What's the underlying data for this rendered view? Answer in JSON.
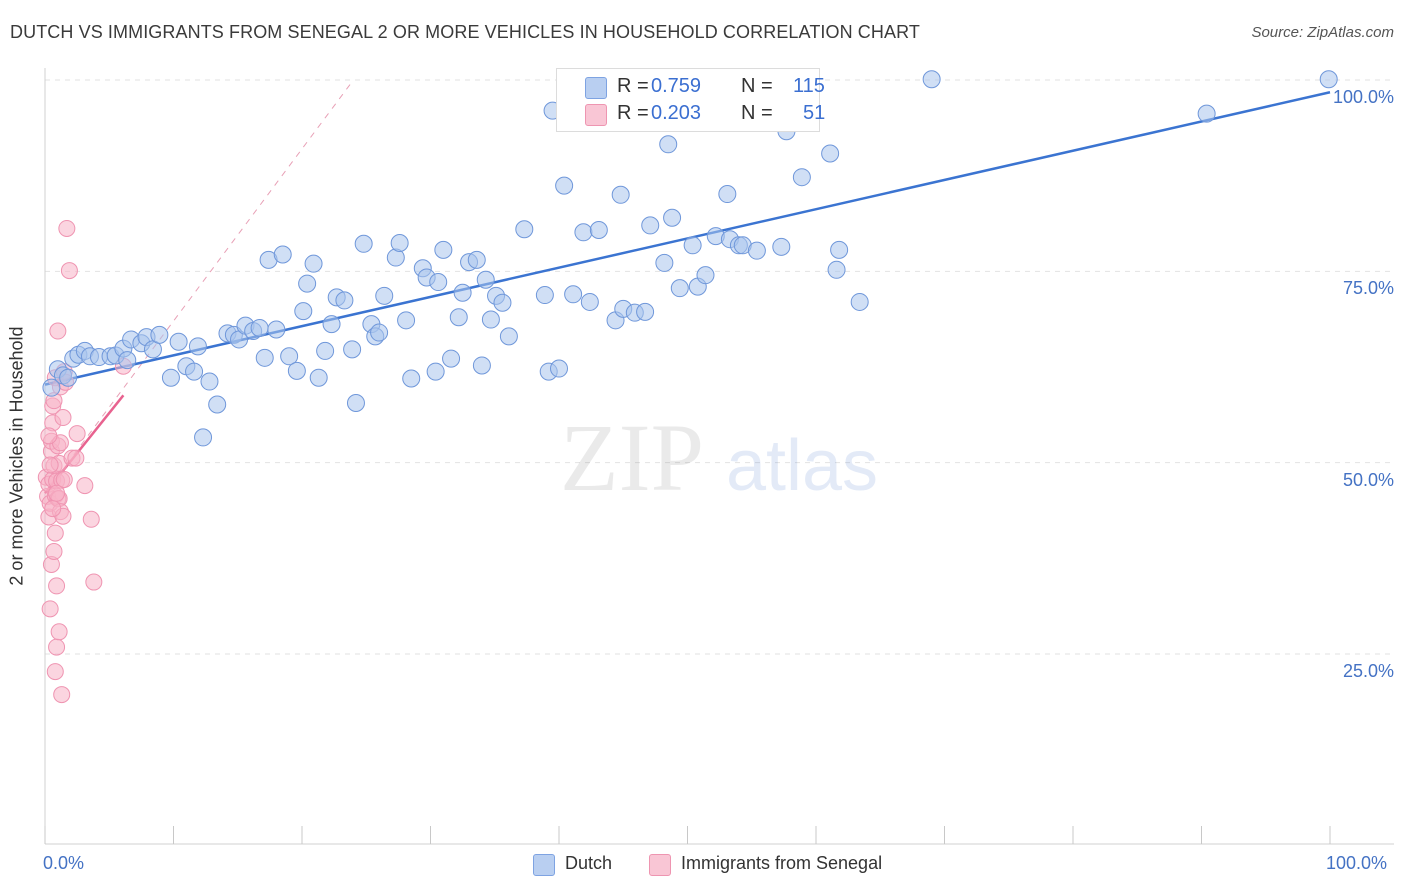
{
  "title": "DUTCH VS IMMIGRANTS FROM SENEGAL 2 OR MORE VEHICLES IN HOUSEHOLD CORRELATION CHART",
  "source": "Source: ZipAtlas.com",
  "colors": {
    "dutch": "#3b74d1",
    "dutch_fill": "#a9c4ec",
    "senegal": "#e8628f",
    "senegal_fill": "#f7b3c7",
    "tick_text": "#4472c4"
  },
  "legend": {
    "rows": [
      {
        "r_label": "R =",
        "r_value": "0.759",
        "n_label": "N =",
        "n_value": "115"
      },
      {
        "r_label": "R =",
        "r_value": "0.203",
        "n_label": "N =",
        "n_value": "51"
      }
    ]
  },
  "chart_data": {
    "type": "scatter",
    "title": "DUTCH VS IMMIGRANTS FROM SENEGAL 2 OR MORE VEHICLES IN HOUSEHOLD CORRELATION CHART",
    "xlabel": "",
    "ylabel": "2 or more Vehicles in Household",
    "xlim": [
      0,
      100
    ],
    "ylim": [
      0,
      102
    ],
    "x_tick_labels": [
      "0.0%",
      "100.0%"
    ],
    "y_tick_labels": [
      "25.0%",
      "50.0%",
      "75.0%",
      "100.0%"
    ],
    "y_ticks": [
      25,
      50,
      75,
      100
    ],
    "grid": true,
    "watermark": {
      "part1": "ZIP",
      "part2": "atlas"
    },
    "series": [
      {
        "name": "Dutch",
        "color": "#3b74d1",
        "trend": {
          "x0": 0,
          "y0": 60.2,
          "x1": 100,
          "y1": 98.4
        },
        "points": [
          [
            0.5,
            59.8
          ],
          [
            1,
            62.2
          ],
          [
            1.4,
            61.4
          ],
          [
            1.8,
            61.1
          ],
          [
            2.2,
            63.6
          ],
          [
            2.6,
            64.1
          ],
          [
            3.1,
            64.6
          ],
          [
            3.5,
            63.9
          ],
          [
            4.2,
            63.8
          ],
          [
            5.1,
            63.9
          ],
          [
            5.5,
            64.0
          ],
          [
            6.1,
            64.9
          ],
          [
            6.4,
            63.4
          ],
          [
            6.7,
            66.1
          ],
          [
            7.5,
            65.6
          ],
          [
            7.9,
            66.4
          ],
          [
            8.4,
            64.8
          ],
          [
            8.9,
            66.7
          ],
          [
            9.8,
            61.1
          ],
          [
            10.4,
            65.8
          ],
          [
            11.0,
            62.6
          ],
          [
            11.6,
            61.9
          ],
          [
            11.9,
            65.2
          ],
          [
            12.3,
            53.3
          ],
          [
            12.8,
            60.6
          ],
          [
            13.4,
            57.6
          ],
          [
            14.2,
            66.9
          ],
          [
            14.7,
            66.7
          ],
          [
            15.1,
            66.1
          ],
          [
            15.6,
            67.9
          ],
          [
            16.2,
            67.2
          ],
          [
            16.7,
            67.6
          ],
          [
            17.1,
            63.7
          ],
          [
            17.4,
            76.5
          ],
          [
            18.0,
            67.4
          ],
          [
            18.5,
            77.2
          ],
          [
            19.0,
            63.9
          ],
          [
            19.6,
            62.0
          ],
          [
            20.1,
            69.8
          ],
          [
            20.4,
            73.4
          ],
          [
            20.9,
            76.0
          ],
          [
            21.3,
            61.1
          ],
          [
            21.8,
            64.6
          ],
          [
            22.3,
            68.1
          ],
          [
            22.7,
            71.6
          ],
          [
            23.3,
            71.2
          ],
          [
            23.9,
            64.8
          ],
          [
            24.2,
            57.8
          ],
          [
            24.8,
            78.6
          ],
          [
            25.4,
            68.1
          ],
          [
            25.7,
            66.5
          ],
          [
            26.0,
            67.0
          ],
          [
            26.4,
            71.8
          ],
          [
            27.3,
            76.8
          ],
          [
            27.6,
            78.7
          ],
          [
            28.1,
            68.6
          ],
          [
            28.5,
            61.0
          ],
          [
            29.4,
            75.4
          ],
          [
            29.7,
            74.2
          ],
          [
            30.4,
            61.9
          ],
          [
            30.6,
            73.6
          ],
          [
            31.0,
            77.8
          ],
          [
            31.6,
            63.6
          ],
          [
            32.2,
            69.0
          ],
          [
            32.5,
            72.2
          ],
          [
            33.0,
            76.2
          ],
          [
            33.6,
            76.5
          ],
          [
            34.0,
            62.7
          ],
          [
            34.3,
            73.9
          ],
          [
            34.7,
            68.7
          ],
          [
            35.1,
            71.8
          ],
          [
            35.6,
            70.9
          ],
          [
            36.1,
            66.5
          ],
          [
            37.3,
            80.5
          ],
          [
            38.9,
            71.9
          ],
          [
            39.2,
            61.9
          ],
          [
            39.5,
            96.0
          ],
          [
            40.0,
            62.3
          ],
          [
            40.4,
            86.2
          ],
          [
            41.1,
            72.0
          ],
          [
            41.9,
            80.1
          ],
          [
            42.4,
            71.0
          ],
          [
            43.1,
            80.4
          ],
          [
            44.4,
            68.6
          ],
          [
            44.8,
            85.0
          ],
          [
            45.0,
            70.1
          ],
          [
            45.9,
            69.6
          ],
          [
            46.7,
            69.7
          ],
          [
            47.1,
            81.0
          ],
          [
            48.2,
            76.1
          ],
          [
            48.5,
            91.6
          ],
          [
            48.8,
            82.0
          ],
          [
            49.4,
            72.8
          ],
          [
            50.4,
            78.4
          ],
          [
            50.8,
            73.0
          ],
          [
            51.4,
            74.5
          ],
          [
            52.2,
            79.6
          ],
          [
            53.1,
            85.1
          ],
          [
            53.3,
            79.2
          ],
          [
            54.0,
            78.4
          ],
          [
            54.3,
            78.4
          ],
          [
            55.4,
            77.7
          ],
          [
            56.7,
            99.5
          ],
          [
            57.3,
            78.2
          ],
          [
            57.7,
            93.3
          ],
          [
            58.9,
            87.3
          ],
          [
            61.1,
            90.4
          ],
          [
            61.6,
            75.2
          ],
          [
            61.8,
            77.8
          ],
          [
            63.4,
            71.0
          ],
          [
            69.0,
            100.1
          ],
          [
            90.4,
            95.6
          ],
          [
            99.9,
            100.1
          ]
        ]
      },
      {
        "name": "Immigrants from Senegal",
        "color": "#e8628f",
        "trend": {
          "x0": 0,
          "y0": 46.0,
          "x1": 6.1,
          "y1": 58.8
        },
        "diagonal": {
          "x0": 0,
          "y0": 46.0,
          "x1": 24.0,
          "y1": 100.0
        },
        "points": [
          [
            0.1,
            48.1
          ],
          [
            0.2,
            45.6
          ],
          [
            0.3,
            47.2
          ],
          [
            0.3,
            42.9
          ],
          [
            0.4,
            30.9
          ],
          [
            0.4,
            44.7
          ],
          [
            0.5,
            51.5
          ],
          [
            0.5,
            36.7
          ],
          [
            0.5,
            52.8
          ],
          [
            0.6,
            55.2
          ],
          [
            0.6,
            57.4
          ],
          [
            0.6,
            47.8
          ],
          [
            0.7,
            38.4
          ],
          [
            0.7,
            58.1
          ],
          [
            0.7,
            49.6
          ],
          [
            0.8,
            61.1
          ],
          [
            0.8,
            45.7
          ],
          [
            0.8,
            22.7
          ],
          [
            0.8,
            40.8
          ],
          [
            0.9,
            33.9
          ],
          [
            0.9,
            25.9
          ],
          [
            0.9,
            47.6
          ],
          [
            1.0,
            52.2
          ],
          [
            1.0,
            45.3
          ],
          [
            1.0,
            67.2
          ],
          [
            1.1,
            27.9
          ],
          [
            1.1,
            49.9
          ],
          [
            1.1,
            45.3
          ],
          [
            1.2,
            43.6
          ],
          [
            1.2,
            52.6
          ],
          [
            1.2,
            59.9
          ],
          [
            1.3,
            19.7
          ],
          [
            1.3,
            47.7
          ],
          [
            1.4,
            43.0
          ],
          [
            1.4,
            55.9
          ],
          [
            1.5,
            61.9
          ],
          [
            1.6,
            60.5
          ],
          [
            1.7,
            80.6
          ],
          [
            1.9,
            75.1
          ],
          [
            2.1,
            50.6
          ],
          [
            2.4,
            50.6
          ],
          [
            2.5,
            53.8
          ],
          [
            3.1,
            47.0
          ],
          [
            3.6,
            42.6
          ],
          [
            3.8,
            34.4
          ],
          [
            6.1,
            62.6
          ],
          [
            0.3,
            53.5
          ],
          [
            0.4,
            49.7
          ],
          [
            0.6,
            44.0
          ],
          [
            1.5,
            47.8
          ],
          [
            0.9,
            46.0
          ]
        ]
      }
    ]
  },
  "bottom_legend": [
    {
      "label": "Dutch"
    },
    {
      "label": "Immigrants from Senegal"
    }
  ]
}
